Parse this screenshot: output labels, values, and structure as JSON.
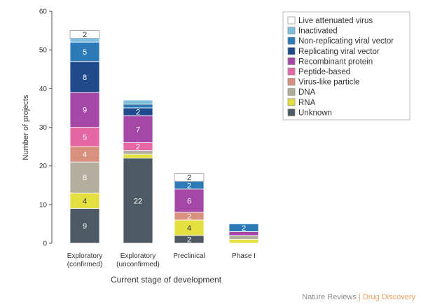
{
  "chart_data": {
    "type": "bar",
    "stacked": true,
    "xlabel": "Current stage of development",
    "ylabel": "Number of projects",
    "ylim": [
      0,
      60
    ],
    "yticks": [
      0,
      10,
      20,
      30,
      40,
      50,
      60
    ],
    "categories": [
      [
        "Exploratory",
        "(confirmed)"
      ],
      [
        "Exploratory",
        "(unconfirmed)"
      ],
      [
        "Preclinical"
      ],
      [
        "Phase I"
      ]
    ],
    "series": [
      {
        "name": "Unknown",
        "color": "#4d5a63",
        "values": [
          9,
          22,
          2,
          0
        ]
      },
      {
        "name": "RNA",
        "color": "#e3e040",
        "values": [
          4,
          1,
          4,
          1
        ]
      },
      {
        "name": "DNA",
        "color": "#b4ae9e",
        "values": [
          8,
          1,
          0,
          1
        ]
      },
      {
        "name": "Virus-like particle",
        "color": "#d9907f",
        "values": [
          4,
          0,
          2,
          0
        ]
      },
      {
        "name": "Peptide-based",
        "color": "#e667a6",
        "values": [
          5,
          2,
          0,
          0
        ]
      },
      {
        "name": "Recombinant protein",
        "color": "#a447a6",
        "values": [
          9,
          7,
          6,
          1
        ]
      },
      {
        "name": "Replicating viral vector",
        "color": "#1f4a8c",
        "values": [
          8,
          2,
          0,
          0
        ]
      },
      {
        "name": "Non-replicating viral vector",
        "color": "#2d7ab8",
        "values": [
          5,
          1,
          2,
          2
        ]
      },
      {
        "name": "Inactivated",
        "color": "#7fbfe0",
        "values": [
          1,
          1,
          0,
          0
        ]
      },
      {
        "name": "Live attenuated virus",
        "color": "#ffffff",
        "values": [
          2,
          0,
          2,
          0
        ]
      }
    ],
    "segment_labels": [
      [
        "9",
        "4",
        "8",
        "4",
        "5",
        "9",
        "8",
        "5",
        "",
        "2"
      ],
      [
        "22",
        "",
        "",
        "",
        "2",
        "7",
        "2",
        "",
        "",
        ""
      ],
      [
        "2",
        "4",
        "",
        "2",
        "",
        "6",
        "",
        "2",
        "",
        "2"
      ],
      [
        "",
        "",
        "",
        "",
        "",
        "",
        "",
        "2",
        "",
        ""
      ]
    ],
    "legend_position": "top-right",
    "grid": false
  },
  "credit": {
    "publisher": "Nature Reviews",
    "separator": "|",
    "journal": "Drug Discovery"
  }
}
